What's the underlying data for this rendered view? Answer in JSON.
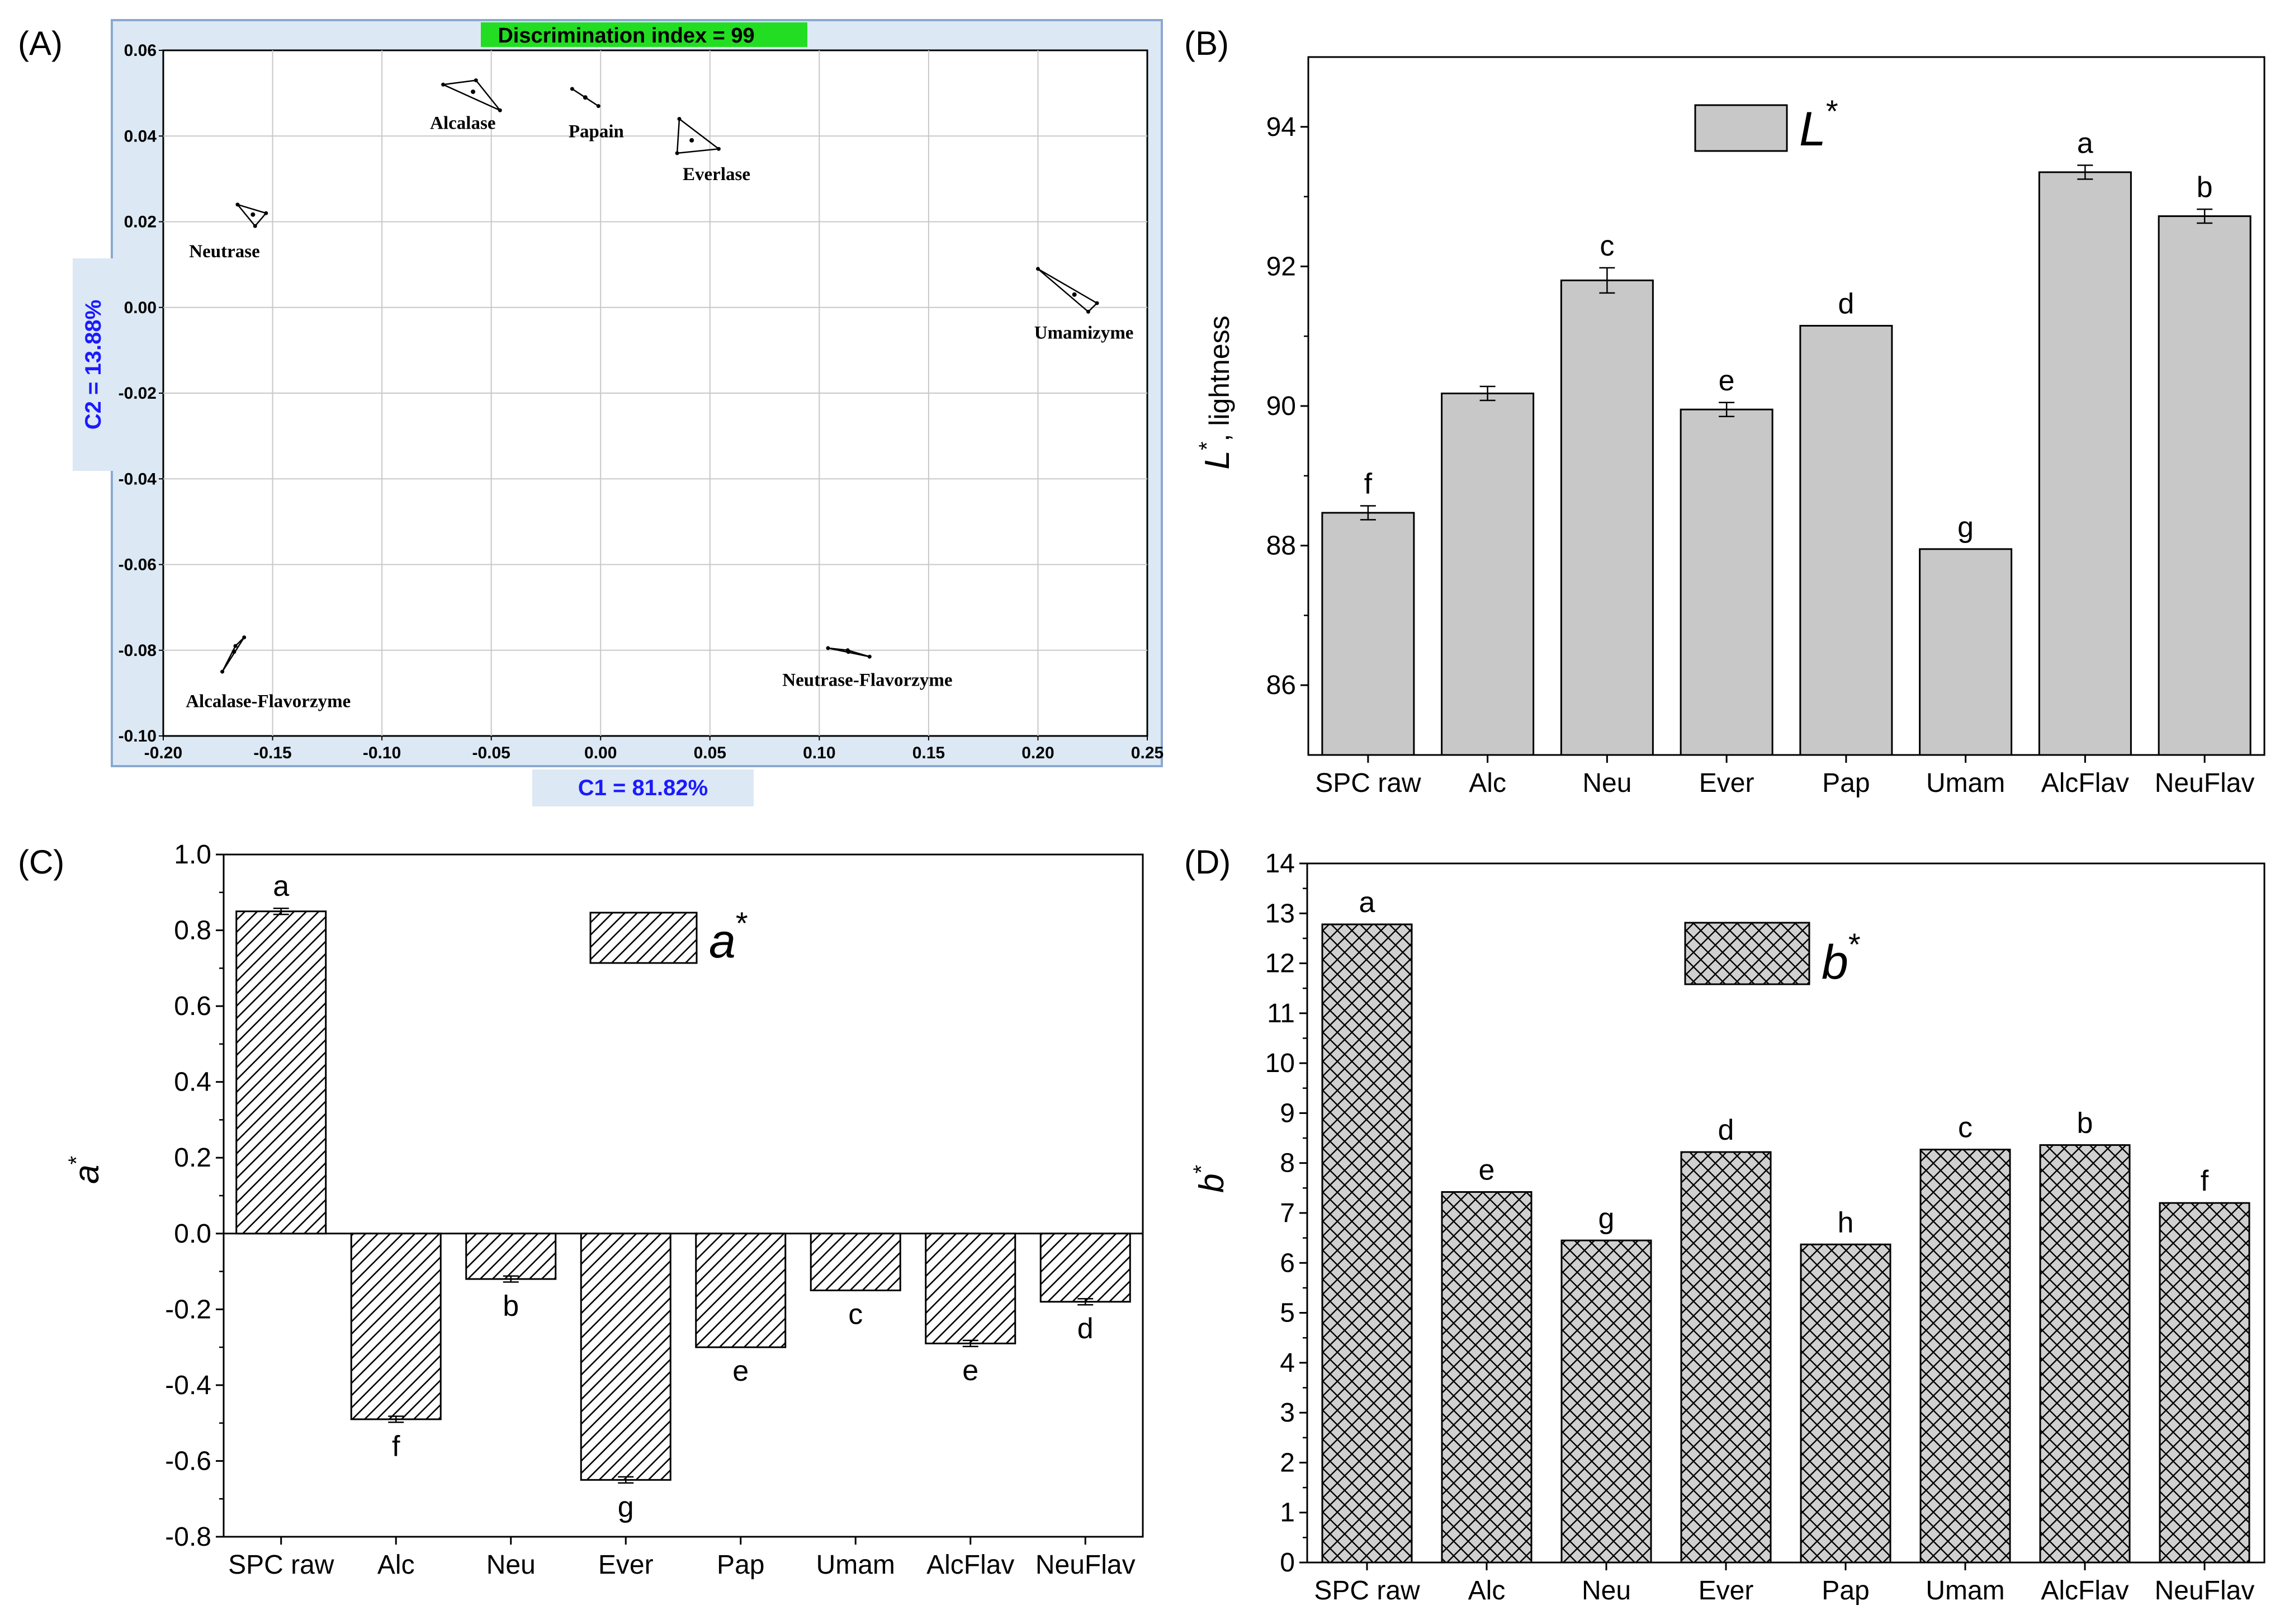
{
  "panel_labels": {
    "a": "(A)",
    "b": "(B)",
    "c": "(C)",
    "d": "(D)"
  },
  "colors": {
    "lda_frame": "#dce8f4",
    "lda_frame_border": "#8aa8d0",
    "lda_banner": "#22dd22",
    "lda_axis_title": "#1a1aff",
    "bar_gray": "#c8c8c8",
    "hatch_fill": "#ffffff"
  },
  "chart_data": [
    {
      "id": "A",
      "type": "scatter",
      "banner": "Discrimination index = 99",
      "xlabel": "C1 = 81.82%",
      "ylabel": "C2 = 13.88%",
      "xlim": [
        -0.2,
        0.25
      ],
      "ylim": [
        -0.1,
        0.06
      ],
      "xticks": [
        -0.2,
        -0.15,
        -0.1,
        -0.05,
        0.0,
        0.05,
        0.1,
        0.15,
        0.2,
        0.25
      ],
      "xtick_labels": [
        "-0.20",
        "-0.15",
        "-0.10",
        "-0.05",
        "0.00",
        "0.05",
        "0.10",
        "0.15",
        "0.20",
        "0.25"
      ],
      "yticks": [
        -0.1,
        -0.08,
        -0.06,
        -0.04,
        -0.02,
        0.0,
        0.02,
        0.04,
        0.06
      ],
      "ytick_labels": [
        "-0.10",
        "-0.08",
        "-0.06",
        "-0.04",
        "-0.02",
        "0.00",
        "0.02",
        "0.04",
        "0.06"
      ],
      "grid": true,
      "groups": [
        {
          "name": "Alcalase",
          "points": [
            [
              -0.072,
              0.052
            ],
            [
              -0.057,
              0.053
            ],
            [
              -0.046,
              0.046
            ]
          ],
          "label_at": [
            -0.063,
            0.043
          ]
        },
        {
          "name": "Papain",
          "points": [
            [
              -0.013,
              0.051
            ],
            [
              -0.007,
              0.049
            ],
            [
              -0.001,
              0.047
            ]
          ],
          "label_at": [
            -0.002,
            0.041
          ]
        },
        {
          "name": "Everlase",
          "points": [
            [
              0.036,
              0.044
            ],
            [
              0.035,
              0.036
            ],
            [
              0.054,
              0.037
            ]
          ],
          "label_at": [
            0.053,
            0.031
          ]
        },
        {
          "name": "Neutrase",
          "points": [
            [
              -0.166,
              0.024
            ],
            [
              -0.158,
              0.019
            ],
            [
              -0.153,
              0.022
            ]
          ],
          "label_at": [
            -0.172,
            0.013
          ]
        },
        {
          "name": "Umamizyme",
          "points": [
            [
              0.2,
              0.009
            ],
            [
              0.227,
              0.001
            ],
            [
              0.223,
              -0.001
            ]
          ],
          "label_at": [
            0.221,
            -0.006
          ]
        },
        {
          "name": "Alcalase-Flavorzyme",
          "points": [
            [
              -0.173,
              -0.085
            ],
            [
              -0.167,
              -0.079
            ],
            [
              -0.163,
              -0.077
            ]
          ],
          "label_at": [
            -0.152,
            -0.092
          ]
        },
        {
          "name": "Neutrase-Flavorzyme",
          "points": [
            [
              0.104,
              -0.0795
            ],
            [
              0.113,
              -0.08
            ],
            [
              0.123,
              -0.0815
            ]
          ],
          "label_at": [
            0.122,
            -0.087
          ]
        }
      ]
    },
    {
      "id": "B",
      "type": "bar",
      "legend": "L",
      "legend_sup": "*",
      "ylabel": "L",
      "ylabel_sup": "*",
      "ylabel_rest": ", lightness",
      "categories": [
        "SPC raw",
        "Alc",
        "Neu",
        "Ever",
        "Pap",
        "Umam",
        "AlcFlav",
        "NeuFlav"
      ],
      "values": [
        88.47,
        90.18,
        91.8,
        89.95,
        91.15,
        87.95,
        93.35,
        92.72
      ],
      "errors": [
        0.1,
        0.1,
        0.18,
        0.1,
        0.0,
        0.0,
        0.1,
        0.1
      ],
      "letters": [
        "f",
        "",
        "c",
        "e",
        "d",
        "g",
        "a",
        "b"
      ],
      "ylim": [
        85,
        95
      ],
      "yticks": [
        86,
        88,
        90,
        92,
        94
      ],
      "ytick_labels": [
        "86",
        "88",
        "90",
        "92",
        "94"
      ]
    },
    {
      "id": "C",
      "type": "bar",
      "legend": "a",
      "legend_sup": "*",
      "ylabel": "a",
      "ylabel_sup": "*",
      "categories": [
        "SPC raw",
        "Alc",
        "Neu",
        "Ever",
        "Pap",
        "Umam",
        "AlcFlav",
        "NeuFlav"
      ],
      "values": [
        0.85,
        -0.49,
        -0.12,
        -0.65,
        -0.3,
        -0.15,
        -0.29,
        -0.18
      ],
      "errors": [
        0.008,
        0.008,
        0.008,
        0.008,
        0.0,
        0.0,
        0.008,
        0.008
      ],
      "letters": [
        "a",
        "f",
        "b",
        "g",
        "e",
        "c",
        "e",
        "d"
      ],
      "ylim": [
        -0.8,
        1.0
      ],
      "yticks": [
        -0.8,
        -0.6,
        -0.4,
        -0.2,
        0.0,
        0.2,
        0.4,
        0.6,
        0.8,
        1.0
      ],
      "ytick_labels": [
        "-0.8",
        "-0.6",
        "-0.4",
        "-0.2",
        "0.0",
        "0.2",
        "0.4",
        "0.6",
        "0.8",
        "1.0"
      ]
    },
    {
      "id": "D",
      "type": "bar",
      "legend": "b",
      "legend_sup": "*",
      "ylabel": "b",
      "ylabel_sup": "*",
      "categories": [
        "SPC raw",
        "Alc",
        "Neu",
        "Ever",
        "Pap",
        "Umam",
        "AlcFlav",
        "NeuFlav"
      ],
      "values": [
        12.78,
        7.42,
        6.45,
        8.22,
        6.37,
        8.27,
        8.36,
        7.2
      ],
      "errors": [
        0.0,
        0.0,
        0.0,
        0.0,
        0.0,
        0.0,
        0.0,
        0.0
      ],
      "letters": [
        "a",
        "e",
        "g",
        "d",
        "h",
        "c",
        "b",
        "f"
      ],
      "ylim": [
        0,
        14
      ],
      "yticks": [
        0,
        1,
        2,
        3,
        4,
        5,
        6,
        7,
        8,
        9,
        10,
        11,
        12,
        13,
        14
      ],
      "ytick_labels": [
        "0",
        "1",
        "2",
        "3",
        "4",
        "5",
        "6",
        "7",
        "8",
        "9",
        "10",
        "11",
        "12",
        "13",
        "14"
      ]
    }
  ]
}
